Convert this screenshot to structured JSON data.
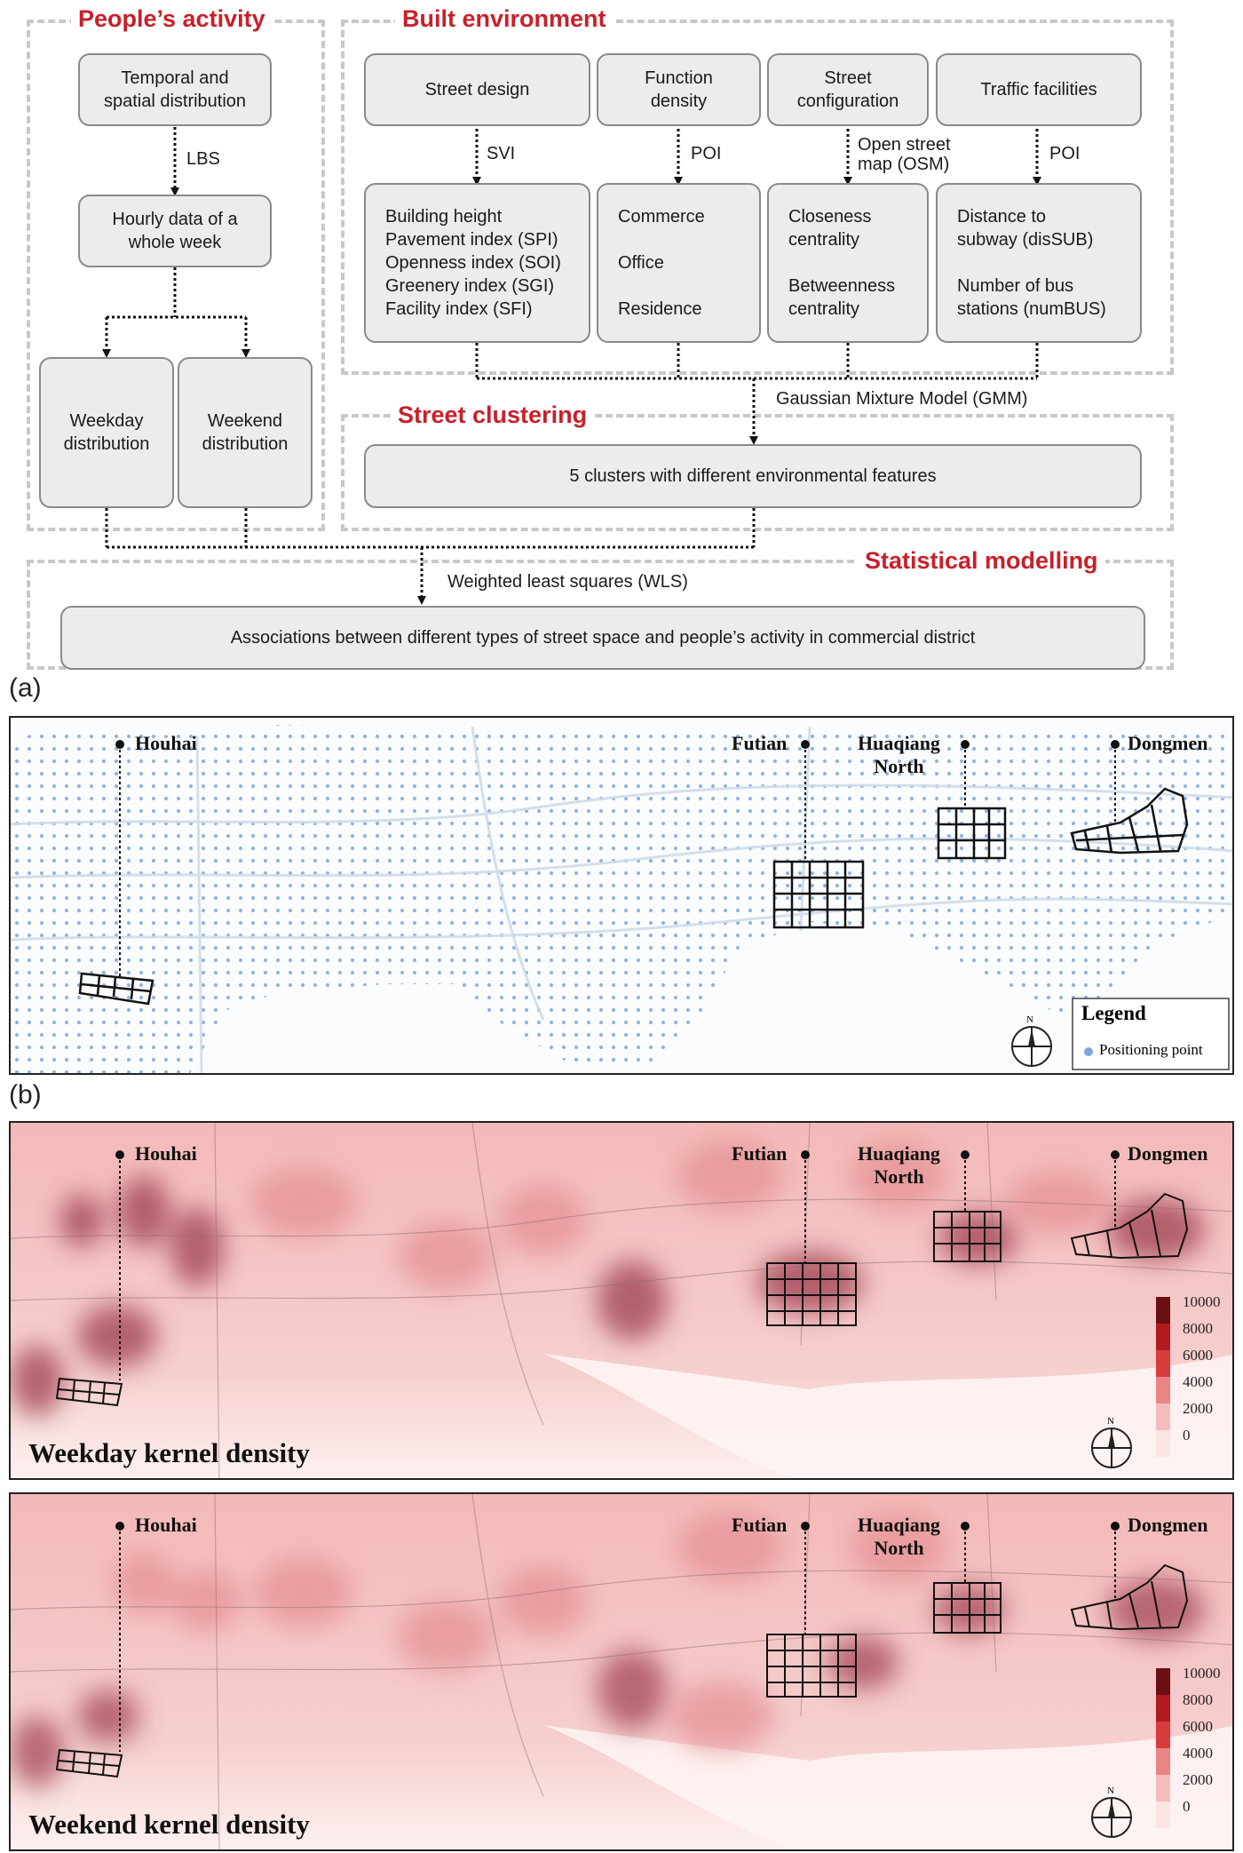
{
  "flowchart": {
    "sections": {
      "peoples_activity": "People’s activity",
      "built_environment": "Built environment",
      "street_clustering": "Street clustering",
      "statistical_modelling": "Statistical modelling"
    },
    "boxes": {
      "temporal": "Temporal and\nspatial distribution",
      "hourly": "Hourly data of a\nwhole week",
      "weekday": "Weekday\ndistribution",
      "weekend": "Weekend\ndistribution",
      "street_design": "Street design",
      "function_density": "Function\ndensity",
      "street_configuration": "Street\nconfiguration",
      "traffic_facilities": "Traffic facilities",
      "svi_indices": "Building height\nPavement index (SPI)\nOpenness index (SOI)\nGreenery index (SGI)\nFacility index (SFI)",
      "poi_types": "Commerce\n\nOffice\n\nResidence",
      "centrality": "Closeness\ncentrality\n\nBetweenness\ncentrality",
      "traffic_measures": "Distance to\nsubway (disSUB)\n\nNumber of bus\nstations (numBUS)",
      "clusters": "5 clusters with different environmental features",
      "associations": "Associations between different types of street space and  people’s activity in commercial district"
    },
    "arrow_labels": {
      "lbs": "LBS",
      "svi": "SVI",
      "poi1": "POI",
      "osm": "Open street\nmap (OSM)",
      "poi2": "POI",
      "gmm": "Gaussian Mixture Model (GMM)",
      "wls": "Weighted least squares (WLS)"
    }
  },
  "panel_a": {
    "letter": "(a)",
    "places": {
      "houhai": "Houhai",
      "futian": "Futian",
      "huaqiang": "Huaqiang\nNorth",
      "dongmen": "Dongmen"
    },
    "legend_title": "Legend",
    "legend_item": "Positioning point",
    "north": "N",
    "point_color": "#7ea6dc"
  },
  "panel_b": {
    "letter": "(b)",
    "weekday_title": "Weekday kernel density",
    "weekend_title": "Weekend kernel density",
    "scale_labels": [
      "10000",
      "8000",
      "6000",
      "4000",
      "2000",
      "0"
    ],
    "scale_colors": [
      "#6b0f12",
      "#b11a1f",
      "#d83b3b",
      "#e98585",
      "#f4bcbc",
      "#fbe4e3"
    ],
    "north": "N"
  }
}
